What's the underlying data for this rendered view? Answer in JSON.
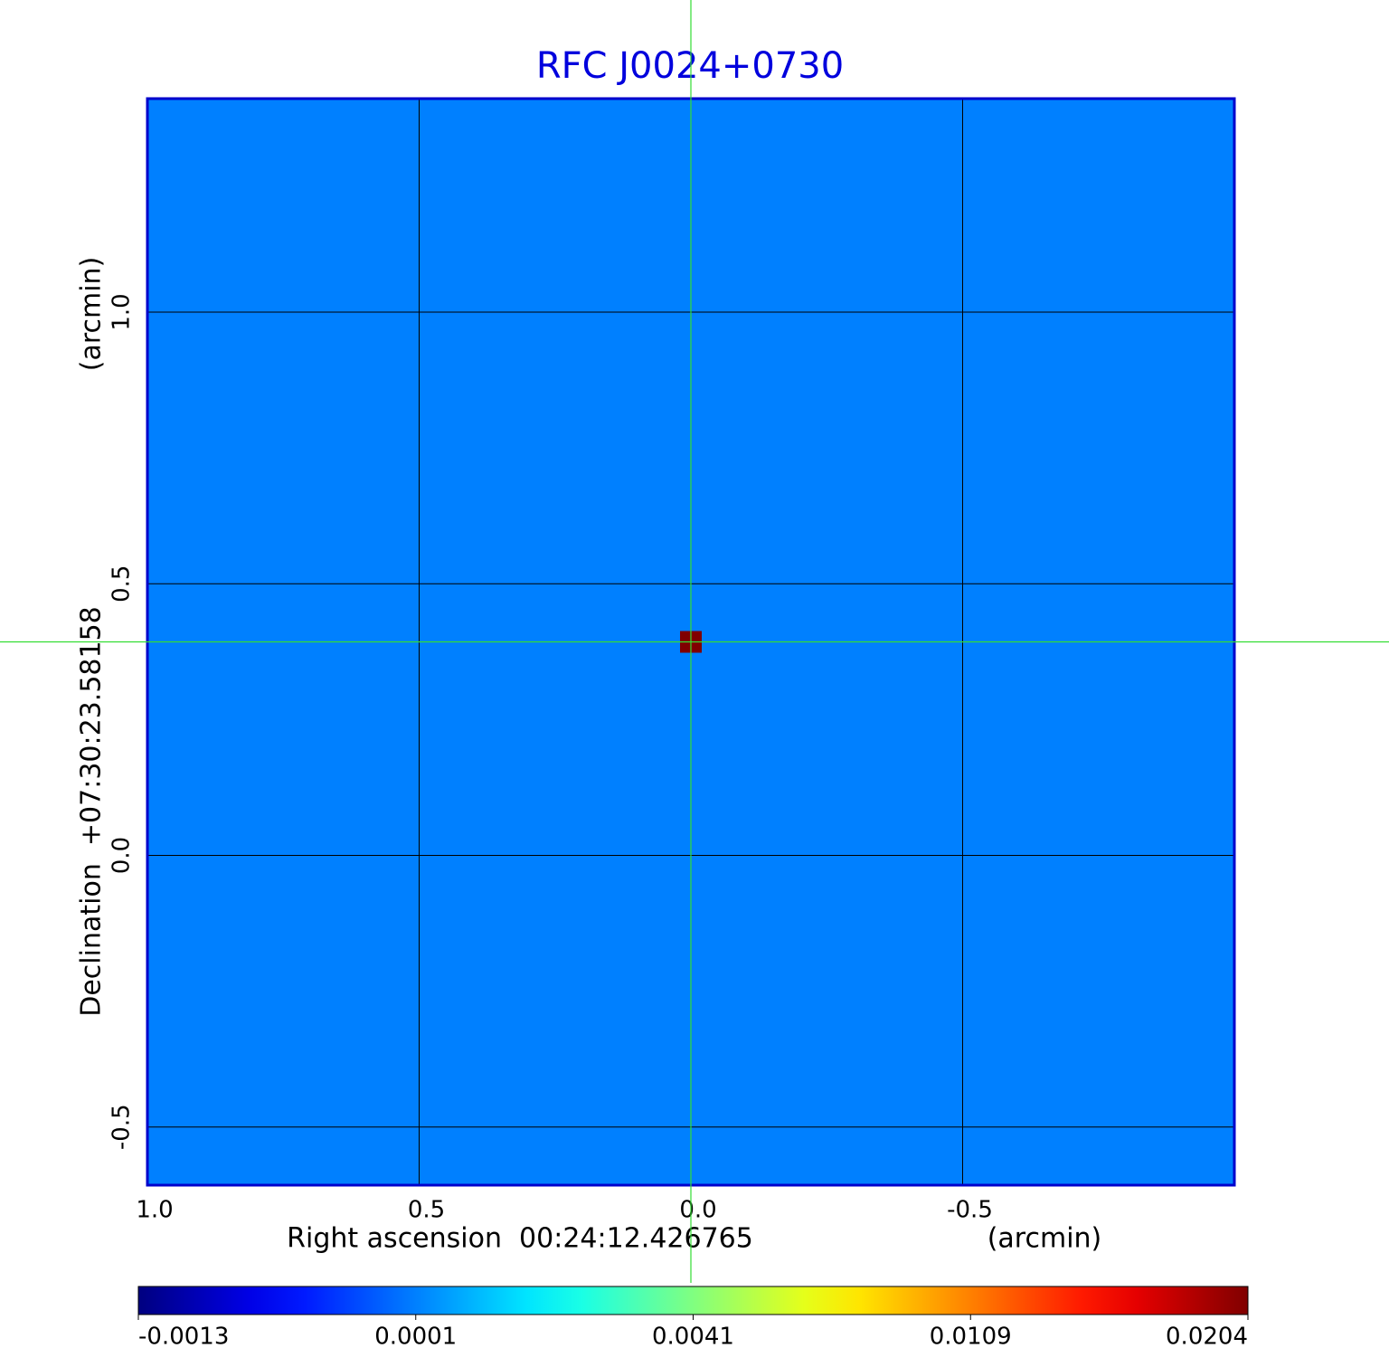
{
  "chart_data": {
    "type": "image",
    "title": "RFC J0024+0730",
    "xlabel": "Right ascension  00:24:12.426765",
    "xunit": "(arcmin)",
    "ylabel": "Declination  +07:30:23.58158",
    "yunit": "(arcmin)",
    "xlim": [
      1.0,
      -1.0
    ],
    "xticks": [
      {
        "value": 1,
        "label": "1.0"
      },
      0.5,
      {
        "value": 0,
        "label": "0.0"
      },
      -0.5
    ],
    "ylim": [
      -0.607,
      1.393
    ],
    "yticks": [
      {
        "value": -0.5,
        "label": "-0.5"
      },
      {
        "value": 0,
        "label": "0.0"
      },
      0.5,
      {
        "value": 1,
        "label": "1.0"
      }
    ],
    "grid": true,
    "colormap": "jet",
    "colorbar_ticks": [
      -0.0013,
      0.0001,
      0.0041,
      0.0109,
      0.0204
    ],
    "background_level": 0.0001,
    "peak": {
      "x": 0,
      "y": 0.393,
      "value": 0.0204
    },
    "frame_color": "#0000cc",
    "crosshair_color": "#33dd33",
    "title_color": "#0000dd"
  }
}
